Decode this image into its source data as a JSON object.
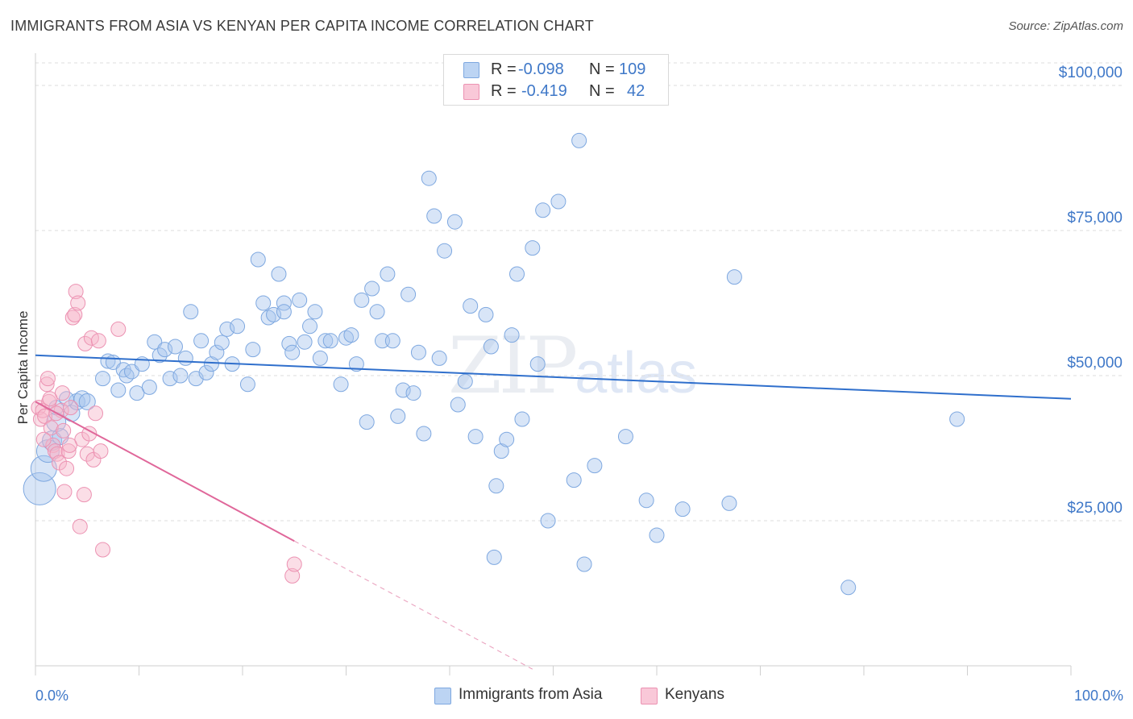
{
  "header": {
    "title": "IMMIGRANTS FROM ASIA VS KENYAN PER CAPITA INCOME CORRELATION CHART",
    "source": "Source: ZipAtlas.com"
  },
  "watermark": {
    "main": "ZIP",
    "sub": "atlas"
  },
  "legend_top": {
    "rows": [
      {
        "r_label": "R =",
        "r_value": "-0.098",
        "n_label": "N =",
        "n_value": "109",
        "color": "#a9c6ee"
      },
      {
        "r_label": "R =",
        "r_value": "-0.419",
        "n_label": "N =",
        "n_value": "42",
        "color": "#f6b5ca"
      }
    ]
  },
  "legend_bottom": {
    "items": [
      {
        "label": "Immigrants from Asia",
        "color": "#a9c6ee"
      },
      {
        "label": "Kenyans",
        "color": "#f6b5ca"
      }
    ]
  },
  "chart_data": {
    "type": "scatter",
    "title": "IMMIGRANTS FROM ASIA VS KENYAN PER CAPITA INCOME CORRELATION CHART",
    "xlabel": "",
    "ylabel": "Per Capita Income",
    "xlim": [
      0,
      100
    ],
    "ylim": [
      0,
      105000
    ],
    "y_ticks": [
      {
        "value": 25000,
        "label": "$25,000"
      },
      {
        "value": 50000,
        "label": "$50,000"
      },
      {
        "value": 75000,
        "label": "$75,000"
      },
      {
        "value": 100000,
        "label": "$100,000"
      }
    ],
    "x_tick_labels": [
      {
        "value": 0,
        "label": "0.0%"
      },
      {
        "value": 100,
        "label": "100.0%"
      }
    ],
    "x_minor_ticks": [
      0,
      10,
      20,
      30,
      40,
      50,
      60,
      70,
      80,
      90,
      100
    ],
    "grid": true,
    "legend_position": "top-center",
    "series": [
      {
        "name": "Immigrants from Asia",
        "color": "#4a86d4",
        "fill": "#a9c6ee",
        "r": -0.098,
        "n": 109,
        "trend": {
          "x0": 0,
          "y0": 53500,
          "x1": 100,
          "y1": 46000,
          "dashed_from": null
        },
        "points": [
          [
            0.4,
            30500,
            20
          ],
          [
            0.8,
            34000,
            16
          ],
          [
            1.2,
            37000,
            14
          ],
          [
            1.6,
            38800,
            12
          ],
          [
            2.0,
            42000,
            12
          ],
          [
            2.4,
            39500,
            10
          ],
          [
            3.5,
            43500,
            10
          ],
          [
            4.0,
            45500,
            10
          ],
          [
            4.5,
            46000,
            10
          ],
          [
            5.0,
            45500,
            10
          ],
          [
            6.5,
            49500,
            9
          ],
          [
            7.0,
            52500,
            9
          ],
          [
            7.5,
            52300,
            9
          ],
          [
            8.0,
            47500,
            9
          ],
          [
            8.5,
            51000,
            9
          ],
          [
            8.8,
            50000,
            9
          ],
          [
            9.3,
            50700,
            9
          ],
          [
            9.8,
            47000,
            9
          ],
          [
            10.3,
            52000,
            9
          ],
          [
            11.0,
            48000,
            9
          ],
          [
            11.5,
            55800,
            9
          ],
          [
            12.0,
            53500,
            9
          ],
          [
            12.5,
            54500,
            9
          ],
          [
            13.0,
            49500,
            9
          ],
          [
            13.5,
            55000,
            9
          ],
          [
            14.0,
            50000,
            9
          ],
          [
            14.5,
            53000,
            9
          ],
          [
            15.0,
            61000,
            9
          ],
          [
            15.5,
            49500,
            9
          ],
          [
            16.0,
            56000,
            9
          ],
          [
            16.5,
            50500,
            9
          ],
          [
            17.0,
            52000,
            9
          ],
          [
            17.5,
            54000,
            9
          ],
          [
            18.0,
            55700,
            9
          ],
          [
            18.5,
            58000,
            9
          ],
          [
            19.0,
            52000,
            9
          ],
          [
            19.5,
            58500,
            9
          ],
          [
            20.5,
            48500,
            9
          ],
          [
            21.0,
            54500,
            9
          ],
          [
            21.5,
            70000,
            9
          ],
          [
            22.0,
            62500,
            9
          ],
          [
            22.5,
            60000,
            9
          ],
          [
            23.0,
            60500,
            9
          ],
          [
            23.5,
            67500,
            9
          ],
          [
            24.0,
            62500,
            9
          ],
          [
            24.5,
            55500,
            9
          ],
          [
            24.0,
            61000,
            9
          ],
          [
            24.8,
            54000,
            9
          ],
          [
            25.5,
            63000,
            9
          ],
          [
            26.0,
            55800,
            9
          ],
          [
            26.5,
            58500,
            9
          ],
          [
            27.0,
            61000,
            9
          ],
          [
            27.5,
            53000,
            9
          ],
          [
            28.0,
            56000,
            9
          ],
          [
            28.5,
            56000,
            9
          ],
          [
            29.5,
            48500,
            9
          ],
          [
            30.0,
            56500,
            9
          ],
          [
            30.5,
            57000,
            9
          ],
          [
            31.0,
            52000,
            9
          ],
          [
            31.5,
            63000,
            9
          ],
          [
            32.0,
            42000,
            9
          ],
          [
            32.5,
            65000,
            9
          ],
          [
            33.0,
            61000,
            9
          ],
          [
            33.5,
            56000,
            9
          ],
          [
            34.0,
            67500,
            9
          ],
          [
            34.5,
            56000,
            9
          ],
          [
            35.0,
            43000,
            9
          ],
          [
            35.5,
            47500,
            9
          ],
          [
            36.0,
            64000,
            9
          ],
          [
            36.5,
            47000,
            9
          ],
          [
            37.0,
            54000,
            9
          ],
          [
            37.5,
            40000,
            9
          ],
          [
            38.0,
            84000,
            9
          ],
          [
            38.5,
            77500,
            9
          ],
          [
            39.0,
            53000,
            9
          ],
          [
            39.5,
            71500,
            9
          ],
          [
            40.5,
            76500,
            9
          ],
          [
            40.8,
            45000,
            9
          ],
          [
            41.5,
            49000,
            9
          ],
          [
            42.0,
            62000,
            9
          ],
          [
            42.5,
            39500,
            9
          ],
          [
            43.5,
            60500,
            9
          ],
          [
            44.0,
            55000,
            9
          ],
          [
            44.5,
            31000,
            9
          ],
          [
            45.0,
            37000,
            9
          ],
          [
            45.5,
            39000,
            9
          ],
          [
            46.0,
            57000,
            9
          ],
          [
            46.5,
            67500,
            9
          ],
          [
            47.0,
            42500,
            9
          ],
          [
            48.0,
            72000,
            9
          ],
          [
            48.5,
            52000,
            9
          ],
          [
            49.0,
            78500,
            9
          ],
          [
            49.5,
            25000,
            9
          ],
          [
            50.5,
            80000,
            9
          ],
          [
            52.0,
            32000,
            9
          ],
          [
            52.5,
            90500,
            9
          ],
          [
            53.0,
            17500,
            9
          ],
          [
            54.0,
            34500,
            9
          ],
          [
            57.0,
            39500,
            9
          ],
          [
            59.0,
            28500,
            9
          ],
          [
            60.0,
            22500,
            9
          ],
          [
            62.5,
            27000,
            9
          ],
          [
            67.0,
            28000,
            9
          ],
          [
            67.5,
            67000,
            9
          ],
          [
            78.5,
            13500,
            9
          ],
          [
            89.0,
            42500,
            9
          ],
          [
            44.3,
            18700,
            9
          ],
          [
            2.0,
            44500,
            9
          ],
          [
            3.0,
            46000,
            9
          ]
        ]
      },
      {
        "name": "Kenyans",
        "color": "#e0679a",
        "fill": "#f6b5ca",
        "r": -0.419,
        "n": 42,
        "trend": {
          "x0": 0,
          "y0": 45500,
          "x1": 25,
          "y1": 21500,
          "dashed_to_x": 48
        },
        "points": [
          [
            0.3,
            44500,
            9
          ],
          [
            0.5,
            42500,
            9
          ],
          [
            0.7,
            44000,
            9
          ],
          [
            0.9,
            43000,
            9
          ],
          [
            1.1,
            48500,
            9
          ],
          [
            1.3,
            45500,
            9
          ],
          [
            1.5,
            41000,
            9
          ],
          [
            1.7,
            38000,
            9
          ],
          [
            1.9,
            37000,
            9
          ],
          [
            2.1,
            36500,
            9
          ],
          [
            2.3,
            35000,
            9
          ],
          [
            2.5,
            44000,
            9
          ],
          [
            2.6,
            47000,
            9
          ],
          [
            2.8,
            30000,
            9
          ],
          [
            3.0,
            34000,
            9
          ],
          [
            3.2,
            37000,
            9
          ],
          [
            3.4,
            44500,
            9
          ],
          [
            3.6,
            60000,
            9
          ],
          [
            3.8,
            60500,
            9
          ],
          [
            3.9,
            64500,
            9
          ],
          [
            4.1,
            62500,
            9
          ],
          [
            4.3,
            24000,
            9
          ],
          [
            4.5,
            39000,
            9
          ],
          [
            4.7,
            29500,
            9
          ],
          [
            4.8,
            55500,
            9
          ],
          [
            5.0,
            36500,
            9
          ],
          [
            5.2,
            40000,
            9
          ],
          [
            5.4,
            56500,
            9
          ],
          [
            5.6,
            35500,
            9
          ],
          [
            5.8,
            43500,
            9
          ],
          [
            6.1,
            56000,
            9
          ],
          [
            6.3,
            37000,
            9
          ],
          [
            6.5,
            20000,
            9
          ],
          [
            8.0,
            58000,
            9
          ],
          [
            1.2,
            49500,
            9
          ],
          [
            0.8,
            39000,
            9
          ],
          [
            2.0,
            43500,
            9
          ],
          [
            24.8,
            15500,
            9
          ],
          [
            25.0,
            17500,
            9
          ],
          [
            1.4,
            46000,
            9
          ],
          [
            2.7,
            40500,
            9
          ],
          [
            3.3,
            38000,
            9
          ]
        ]
      }
    ]
  }
}
